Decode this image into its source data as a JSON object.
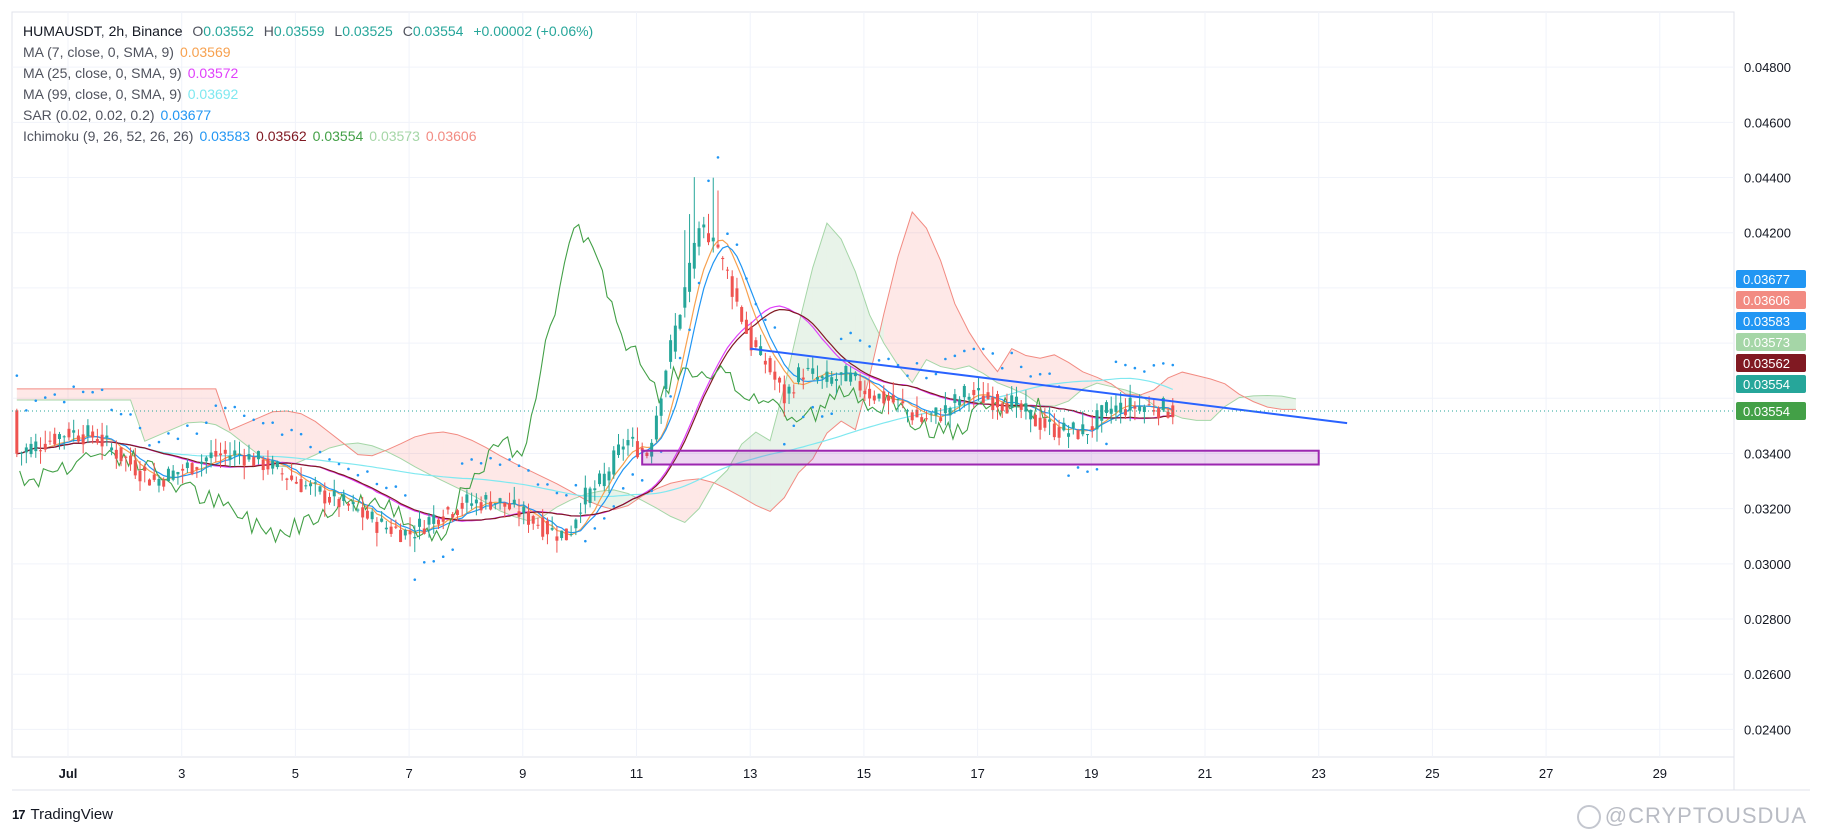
{
  "chart_data": {
    "type": "candlestick",
    "symbol": "HUMAUSDT",
    "interval": "2h",
    "exchange": "Binance",
    "ohlc": {
      "O": "0.03552",
      "H": "0.03559",
      "L": "0.03525",
      "C": "0.03554",
      "change": "+0.00002 (+0.06%)"
    },
    "ylim": [
      0.023,
      0.05
    ],
    "y_ticks": [
      "0.04800",
      "0.04600",
      "0.04400",
      "0.04200",
      "0.03400",
      "0.03200",
      "0.03000",
      "0.02800",
      "0.02600",
      "0.02400"
    ],
    "x_ticks": [
      "Jul",
      "3",
      "5",
      "7",
      "9",
      "11",
      "13",
      "15",
      "17",
      "19",
      "21",
      "23",
      "25",
      "27",
      "29"
    ],
    "x_domain_days": [
      0,
      31
    ],
    "indicators": [
      {
        "label": "MA (7, close, 0, SMA, 9)",
        "values": [
          "0.03569"
        ],
        "colors": [
          "#f7a14f"
        ]
      },
      {
        "label": "MA (25, close, 0, SMA, 9)",
        "values": [
          "0.03572"
        ],
        "colors": [
          "#e040fb"
        ]
      },
      {
        "label": "MA (99, close, 0, SMA, 9)",
        "values": [
          "0.03692"
        ],
        "colors": [
          "#7fe8f0"
        ]
      },
      {
        "label": "SAR (0.02, 0.02, 0.2)",
        "values": [
          "0.03677"
        ],
        "colors": [
          "#2196f3"
        ]
      },
      {
        "label": "Ichimoku (9, 26, 52, 26, 26)",
        "values": [
          "0.03583",
          "0.03562",
          "0.03554",
          "0.03573",
          "0.03606"
        ],
        "colors": [
          "#2196f3",
          "#801922",
          "#43a047",
          "#a5d6a7",
          "#f28b82"
        ]
      }
    ],
    "price_tags": [
      {
        "value": "0.03677",
        "color": "#2196f3"
      },
      {
        "value": "0.03606",
        "color": "#f28b82"
      },
      {
        "value": "0.03583",
        "color": "#2196f3"
      },
      {
        "value": "0.03573",
        "color": "#a5d6a7"
      },
      {
        "value": "0.03562",
        "color": "#801922"
      },
      {
        "value": "0.03554",
        "color": "#26a69a"
      },
      {
        "value": "0.03554",
        "color": "#43a047"
      }
    ],
    "trendline": {
      "from": {
        "day": 12.0,
        "price": 0.0378
      },
      "to": {
        "day": 22.5,
        "price": 0.0351
      },
      "color": "#2962ff"
    },
    "support_box": {
      "from_day": 10.1,
      "to_day": 22.0,
      "top": 0.0341,
      "bottom": 0.0336,
      "color": "#9c27b0"
    },
    "close_price": 0.03554,
    "colors": {
      "up": "#26a69a",
      "down": "#ef5350",
      "grid": "#f0f3fa"
    }
  },
  "brand": {
    "name": "TradingView"
  },
  "watermark": {
    "text": "@CRYPTOUSDUA"
  }
}
